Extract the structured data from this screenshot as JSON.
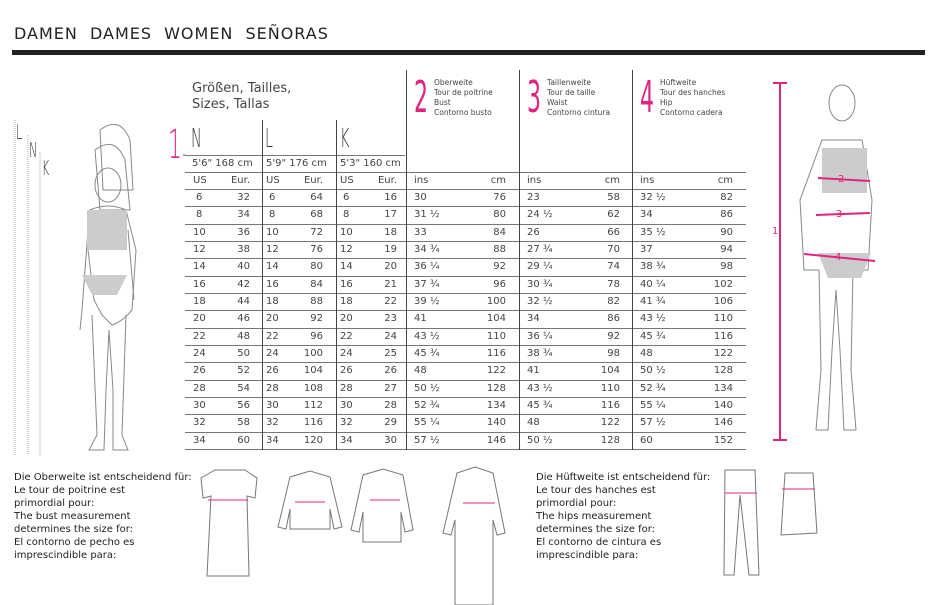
{
  "title": "DAMEN  DAMES  WOMEN  SEÑORAS",
  "sizes_title": [
    "Größen, Tailles,",
    "Sizes, Tallas"
  ],
  "measure_number_1": "1",
  "groups": [
    {
      "letter": "N",
      "height": "5'6\"  168 cm",
      "col_us": "US",
      "col_eur": "Eur."
    },
    {
      "letter": "L",
      "height": "5'9\"  176 cm",
      "col_us": "US",
      "col_eur": "Eur."
    },
    {
      "letter": "K",
      "height": "5'3\"  160 cm",
      "col_us": "US",
      "col_eur": "Eur."
    }
  ],
  "measures": [
    {
      "number": "2",
      "labels": [
        "Oberweite",
        "Tour de poitrine",
        "Bust",
        "Contorno busto"
      ],
      "col_ins": "ins",
      "col_cm": "cm"
    },
    {
      "number": "3",
      "labels": [
        "Taillenweite",
        "Tour de taille",
        "Waist",
        "Contorno cintura"
      ],
      "col_ins": "ins",
      "col_cm": "cm"
    },
    {
      "number": "4",
      "labels": [
        "Hüftweite",
        "Tour des hanches",
        "Hip",
        "Contorno cadera"
      ],
      "col_ins": "ins",
      "col_cm": "cm"
    }
  ],
  "rows": [
    [
      "6",
      "32",
      "6",
      "64",
      "6",
      "16",
      "30",
      "76",
      "23",
      "58",
      "32 ½",
      "82"
    ],
    [
      "8",
      "34",
      "8",
      "68",
      "8",
      "17",
      "31 ½",
      "80",
      "24 ½",
      "62",
      "34",
      "86"
    ],
    [
      "10",
      "36",
      "10",
      "72",
      "10",
      "18",
      "33",
      "84",
      "26",
      "66",
      "35 ½",
      "90"
    ],
    [
      "12",
      "38",
      "12",
      "76",
      "12",
      "19",
      "34 ¾",
      "88",
      "27 ¾",
      "70",
      "37",
      "94"
    ],
    [
      "14",
      "40",
      "14",
      "80",
      "14",
      "20",
      "36 ¼",
      "92",
      "29 ¼",
      "74",
      "38 ¾",
      "98"
    ],
    [
      "16",
      "42",
      "16",
      "84",
      "16",
      "21",
      "37 ¾",
      "96",
      "30 ¾",
      "78",
      "40 ¼",
      "102"
    ],
    [
      "18",
      "44",
      "18",
      "88",
      "18",
      "22",
      "39 ½",
      "100",
      "32 ½",
      "82",
      "41 ¾",
      "106"
    ],
    [
      "20",
      "46",
      "20",
      "92",
      "20",
      "23",
      "41",
      "104",
      "34",
      "86",
      "43 ½",
      "110"
    ],
    [
      "22",
      "48",
      "22",
      "96",
      "22",
      "24",
      "43 ½",
      "110",
      "36 ¼",
      "92",
      "45 ¾",
      "116"
    ],
    [
      "24",
      "50",
      "24",
      "100",
      "24",
      "25",
      "45 ¾",
      "116",
      "38 ¾",
      "98",
      "48",
      "122"
    ],
    [
      "26",
      "52",
      "26",
      "104",
      "26",
      "26",
      "48",
      "122",
      "41",
      "104",
      "50 ½",
      "128"
    ],
    [
      "28",
      "54",
      "28",
      "108",
      "28",
      "27",
      "50 ½",
      "128",
      "43 ½",
      "110",
      "52 ¾",
      "134"
    ],
    [
      "30",
      "56",
      "30",
      "112",
      "30",
      "28",
      "52 ¾",
      "134",
      "45 ¾",
      "116",
      "55 ¼",
      "140"
    ],
    [
      "32",
      "58",
      "32",
      "116",
      "32",
      "29",
      "55 ¼",
      "140",
      "48",
      "122",
      "57 ½",
      "146"
    ],
    [
      "34",
      "60",
      "34",
      "120",
      "34",
      "30",
      "57 ½",
      "146",
      "50 ½",
      "128",
      "60",
      "152"
    ]
  ],
  "figure_labels": {
    "left": [
      "L",
      "N",
      "K"
    ],
    "right": [
      "1",
      "2",
      "3",
      "4"
    ]
  },
  "bust_note": [
    "Die Oberweite ist entscheidend für:",
    "Le tour de poitrine est",
    "primordial pour:",
    "The bust measurement",
    "determines the size for:",
    "El contorno de pecho es",
    "imprescindible para:"
  ],
  "hip_note": [
    "Die Hüftweite ist entscheidend für:",
    "Le tour des hanches est",
    "primordial pour:",
    "The hips measurement",
    "determines the size for:",
    "El contorno de cintura es",
    "imprescindible para:"
  ],
  "accent_color": "#e0257f"
}
